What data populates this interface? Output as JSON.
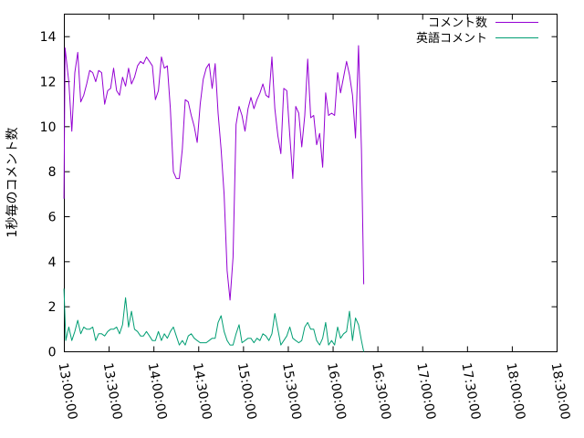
{
  "chart_data": {
    "type": "line",
    "ylabel": "1秒毎のコメント数",
    "ylim": [
      0,
      15
    ],
    "yticks": [
      0,
      2,
      4,
      6,
      8,
      10,
      12,
      14
    ],
    "xlim": [
      "13:00:00",
      "18:30:00"
    ],
    "xticks": [
      "13:00:00",
      "13:30:00",
      "14:00:00",
      "14:30:00",
      "15:00:00",
      "15:30:00",
      "16:00:00",
      "16:30:00",
      "17:00:00",
      "17:30:00",
      "18:00:00",
      "18:30:00"
    ],
    "legend_position": "top-right",
    "grid": false,
    "series": [
      {
        "name": "コメント数",
        "color": "#9400d3",
        "points": [
          [
            "12:59:45",
            6.8
          ],
          [
            "13:00:30",
            13.5
          ],
          [
            "13:03:00",
            12.0
          ],
          [
            "13:05:00",
            9.8
          ],
          [
            "13:07:00",
            12.4
          ],
          [
            "13:09:00",
            13.3
          ],
          [
            "13:11:00",
            11.1
          ],
          [
            "13:13:00",
            11.4
          ],
          [
            "13:15:00",
            11.9
          ],
          [
            "13:17:00",
            12.5
          ],
          [
            "13:19:00",
            12.4
          ],
          [
            "13:21:00",
            12.0
          ],
          [
            "13:23:00",
            12.5
          ],
          [
            "13:25:00",
            12.4
          ],
          [
            "13:27:00",
            11.0
          ],
          [
            "13:29:00",
            11.6
          ],
          [
            "13:31:00",
            11.7
          ],
          [
            "13:33:00",
            12.6
          ],
          [
            "13:35:00",
            11.6
          ],
          [
            "13:37:00",
            11.4
          ],
          [
            "13:39:00",
            12.2
          ],
          [
            "13:41:00",
            11.8
          ],
          [
            "13:43:00",
            12.6
          ],
          [
            "13:45:00",
            11.9
          ],
          [
            "13:47:00",
            12.2
          ],
          [
            "13:49:00",
            12.7
          ],
          [
            "13:51:00",
            12.9
          ],
          [
            "13:53:00",
            12.8
          ],
          [
            "13:55:00",
            13.1
          ],
          [
            "13:57:00",
            12.9
          ],
          [
            "13:59:00",
            12.7
          ],
          [
            "14:01:00",
            11.2
          ],
          [
            "14:03:00",
            11.6
          ],
          [
            "14:05:00",
            13.1
          ],
          [
            "14:07:00",
            12.6
          ],
          [
            "14:09:00",
            12.7
          ],
          [
            "14:11:00",
            10.8
          ],
          [
            "14:13:00",
            8.0
          ],
          [
            "14:15:00",
            7.7
          ],
          [
            "14:17:00",
            7.7
          ],
          [
            "14:19:00",
            9.0
          ],
          [
            "14:21:00",
            11.2
          ],
          [
            "14:23:00",
            11.1
          ],
          [
            "14:25:00",
            10.5
          ],
          [
            "14:27:00",
            10.0
          ],
          [
            "14:29:00",
            9.3
          ],
          [
            "14:31:00",
            11.0
          ],
          [
            "14:33:00",
            12.1
          ],
          [
            "14:35:00",
            12.6
          ],
          [
            "14:37:00",
            12.8
          ],
          [
            "14:39:00",
            11.7
          ],
          [
            "14:41:00",
            12.8
          ],
          [
            "14:43:00",
            10.6
          ],
          [
            "14:45:00",
            9.0
          ],
          [
            "14:47:00",
            7.0
          ],
          [
            "14:49:00",
            3.6
          ],
          [
            "14:51:00",
            2.3
          ],
          [
            "14:53:00",
            4.2
          ],
          [
            "14:55:00",
            10.1
          ],
          [
            "14:57:00",
            10.9
          ],
          [
            "14:59:00",
            10.5
          ],
          [
            "15:01:00",
            9.8
          ],
          [
            "15:03:00",
            10.8
          ],
          [
            "15:05:00",
            11.3
          ],
          [
            "15:07:00",
            10.8
          ],
          [
            "15:09:00",
            11.2
          ],
          [
            "15:11:00",
            11.5
          ],
          [
            "15:13:00",
            11.9
          ],
          [
            "15:15:00",
            11.4
          ],
          [
            "15:17:00",
            11.3
          ],
          [
            "15:19:00",
            13.1
          ],
          [
            "15:21:00",
            10.8
          ],
          [
            "15:23:00",
            9.6
          ],
          [
            "15:25:00",
            8.8
          ],
          [
            "15:27:00",
            11.7
          ],
          [
            "15:29:00",
            11.6
          ],
          [
            "15:31:00",
            9.6
          ],
          [
            "15:33:00",
            7.7
          ],
          [
            "15:35:00",
            10.9
          ],
          [
            "15:37:00",
            10.6
          ],
          [
            "15:39:00",
            9.1
          ],
          [
            "15:41:00",
            10.5
          ],
          [
            "15:43:00",
            13.0
          ],
          [
            "15:45:00",
            10.4
          ],
          [
            "15:47:00",
            10.5
          ],
          [
            "15:49:00",
            9.2
          ],
          [
            "15:51:00",
            9.7
          ],
          [
            "15:53:00",
            8.2
          ],
          [
            "15:55:00",
            11.5
          ],
          [
            "15:57:00",
            10.5
          ],
          [
            "15:59:00",
            10.6
          ],
          [
            "16:01:00",
            10.5
          ],
          [
            "16:03:00",
            12.4
          ],
          [
            "16:05:00",
            11.5
          ],
          [
            "16:07:00",
            12.2
          ],
          [
            "16:09:00",
            12.9
          ],
          [
            "16:11:00",
            12.3
          ],
          [
            "16:13:00",
            11.4
          ],
          [
            "16:15:00",
            9.5
          ],
          [
            "16:17:00",
            13.6
          ],
          [
            "16:19:00",
            9.0
          ],
          [
            "16:20:30",
            3.0
          ]
        ]
      },
      {
        "name": "英語コメント",
        "color": "#009e73",
        "points": [
          [
            "12:59:45",
            2.8
          ],
          [
            "13:01:00",
            0.5
          ],
          [
            "13:03:00",
            1.1
          ],
          [
            "13:05:00",
            0.5
          ],
          [
            "13:07:00",
            0.9
          ],
          [
            "13:09:00",
            1.4
          ],
          [
            "13:11:00",
            0.8
          ],
          [
            "13:13:00",
            1.1
          ],
          [
            "13:15:00",
            1.0
          ],
          [
            "13:17:00",
            1.0
          ],
          [
            "13:19:00",
            1.1
          ],
          [
            "13:21:00",
            0.5
          ],
          [
            "13:23:00",
            0.8
          ],
          [
            "13:25:00",
            0.8
          ],
          [
            "13:27:00",
            0.7
          ],
          [
            "13:29:00",
            0.9
          ],
          [
            "13:31:00",
            1.0
          ],
          [
            "13:33:00",
            1.0
          ],
          [
            "13:35:00",
            1.1
          ],
          [
            "13:37:00",
            0.8
          ],
          [
            "13:39:00",
            1.2
          ],
          [
            "13:41:00",
            2.4
          ],
          [
            "13:43:00",
            1.1
          ],
          [
            "13:45:00",
            1.8
          ],
          [
            "13:47:00",
            1.0
          ],
          [
            "13:49:00",
            0.9
          ],
          [
            "13:51:00",
            0.7
          ],
          [
            "13:53:00",
            0.7
          ],
          [
            "13:55:00",
            0.9
          ],
          [
            "13:57:00",
            0.7
          ],
          [
            "13:59:00",
            0.5
          ],
          [
            "14:01:00",
            0.5
          ],
          [
            "14:03:00",
            0.9
          ],
          [
            "14:05:00",
            0.5
          ],
          [
            "14:07:00",
            0.8
          ],
          [
            "14:09:00",
            0.6
          ],
          [
            "14:11:00",
            0.9
          ],
          [
            "14:13:00",
            1.1
          ],
          [
            "14:15:00",
            0.7
          ],
          [
            "14:17:00",
            0.3
          ],
          [
            "14:19:00",
            0.5
          ],
          [
            "14:21:00",
            0.3
          ],
          [
            "14:23:00",
            0.7
          ],
          [
            "14:25:00",
            0.8
          ],
          [
            "14:27:00",
            0.6
          ],
          [
            "14:29:00",
            0.5
          ],
          [
            "14:31:00",
            0.4
          ],
          [
            "14:33:00",
            0.4
          ],
          [
            "14:35:00",
            0.4
          ],
          [
            "14:37:00",
            0.5
          ],
          [
            "14:39:00",
            0.6
          ],
          [
            "14:41:00",
            0.6
          ],
          [
            "14:43:00",
            1.3
          ],
          [
            "14:45:00",
            1.6
          ],
          [
            "14:47:00",
            0.9
          ],
          [
            "14:49:00",
            0.5
          ],
          [
            "14:51:00",
            0.3
          ],
          [
            "14:53:00",
            0.3
          ],
          [
            "14:55:00",
            0.8
          ],
          [
            "14:57:00",
            1.2
          ],
          [
            "14:59:00",
            0.4
          ],
          [
            "15:01:00",
            0.5
          ],
          [
            "15:03:00",
            0.6
          ],
          [
            "15:05:00",
            0.6
          ],
          [
            "15:07:00",
            0.4
          ],
          [
            "15:09:00",
            0.6
          ],
          [
            "15:11:00",
            0.5
          ],
          [
            "15:13:00",
            0.8
          ],
          [
            "15:15:00",
            0.7
          ],
          [
            "15:17:00",
            0.5
          ],
          [
            "15:19:00",
            0.8
          ],
          [
            "15:21:00",
            1.7
          ],
          [
            "15:23:00",
            1.0
          ],
          [
            "15:25:00",
            0.3
          ],
          [
            "15:27:00",
            0.5
          ],
          [
            "15:29:00",
            0.7
          ],
          [
            "15:31:00",
            1.1
          ],
          [
            "15:33:00",
            0.6
          ],
          [
            "15:35:00",
            0.5
          ],
          [
            "15:37:00",
            0.4
          ],
          [
            "15:39:00",
            0.5
          ],
          [
            "15:41:00",
            1.1
          ],
          [
            "15:43:00",
            1.3
          ],
          [
            "15:45:00",
            1.0
          ],
          [
            "15:47:00",
            1.0
          ],
          [
            "15:49:00",
            0.5
          ],
          [
            "15:51:00",
            0.3
          ],
          [
            "15:53:00",
            0.6
          ],
          [
            "15:55:00",
            1.3
          ],
          [
            "15:57:00",
            0.3
          ],
          [
            "15:59:00",
            0.5
          ],
          [
            "16:01:00",
            0.3
          ],
          [
            "16:03:00",
            1.1
          ],
          [
            "16:05:00",
            0.6
          ],
          [
            "16:07:00",
            0.8
          ],
          [
            "16:09:00",
            0.9
          ],
          [
            "16:11:00",
            1.8
          ],
          [
            "16:13:00",
            0.5
          ],
          [
            "16:15:00",
            1.5
          ],
          [
            "16:17:00",
            1.2
          ],
          [
            "16:19:00",
            0.5
          ],
          [
            "16:20:30",
            0.0
          ]
        ]
      }
    ]
  }
}
